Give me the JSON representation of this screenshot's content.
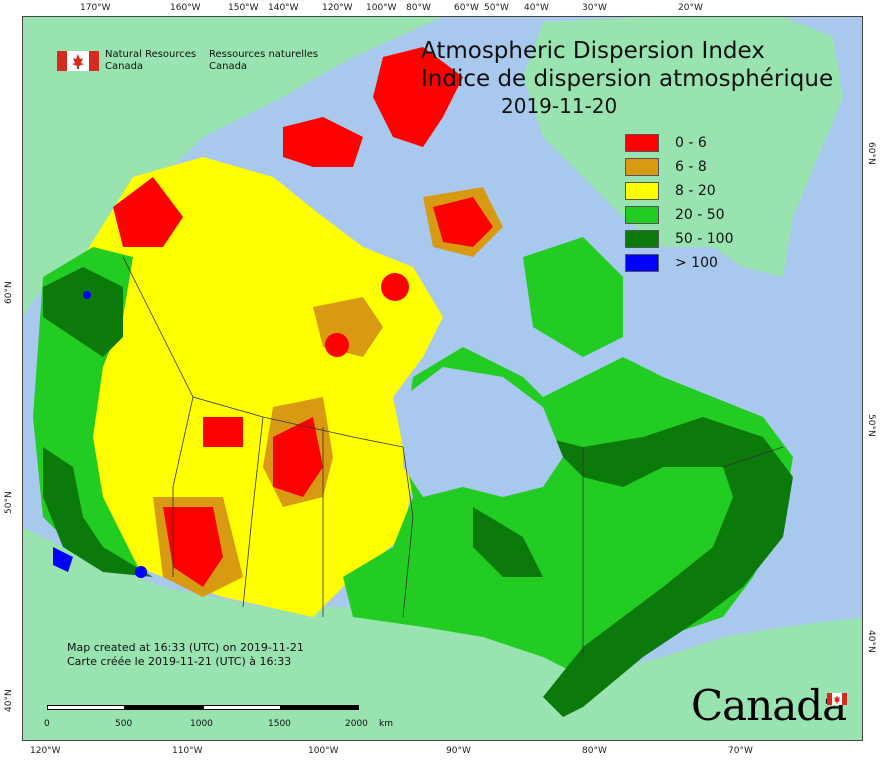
{
  "agency": {
    "name_en_line1": "Natural Resources",
    "name_en_line2": "Canada",
    "name_fr_line1": "Ressources naturelles",
    "name_fr_line2": "Canada"
  },
  "title": {
    "en": "Atmospheric Dispersion Index",
    "fr": "Indice de dispersion atmosphérique",
    "date": "2019-11-20"
  },
  "legend": {
    "items": [
      {
        "label": "0 - 6",
        "color": "#ff0000"
      },
      {
        "label": "6 - 8",
        "color": "#d99a13"
      },
      {
        "label": "8 - 20",
        "color": "#ffff00"
      },
      {
        "label": "20 - 50",
        "color": "#22cc22"
      },
      {
        "label": "50 - 100",
        "color": "#0b7a0b"
      },
      {
        "label": "> 100",
        "color": "#0000ff"
      }
    ]
  },
  "credits": {
    "line1": "Map created at 16:33 (UTC) on 2019-11-21",
    "line2": "Carte créée le 2019-11-21 (UTC) à 16:33"
  },
  "scale": {
    "ticks": [
      "0",
      "500",
      "1000",
      "1500",
      "2000"
    ],
    "unit": "km"
  },
  "wordmark": "Canada",
  "graticule": {
    "top": [
      "170°W",
      "160°W",
      "150°W",
      "140°W",
      "120°W",
      "100°W",
      "80°W",
      "60°W",
      "50°W",
      "40°W",
      "30°W",
      "20°W"
    ],
    "bottom": [
      "120°W",
      "110°W",
      "100°W",
      "90°W",
      "80°W",
      "70°W"
    ],
    "left": [
      "60°N",
      "50°N",
      "40°N"
    ],
    "right": [
      "60°N",
      "50°N",
      "40°N"
    ]
  },
  "colors": {
    "ocean": "#a9c8ee",
    "land_outside": "#98e3b0"
  }
}
